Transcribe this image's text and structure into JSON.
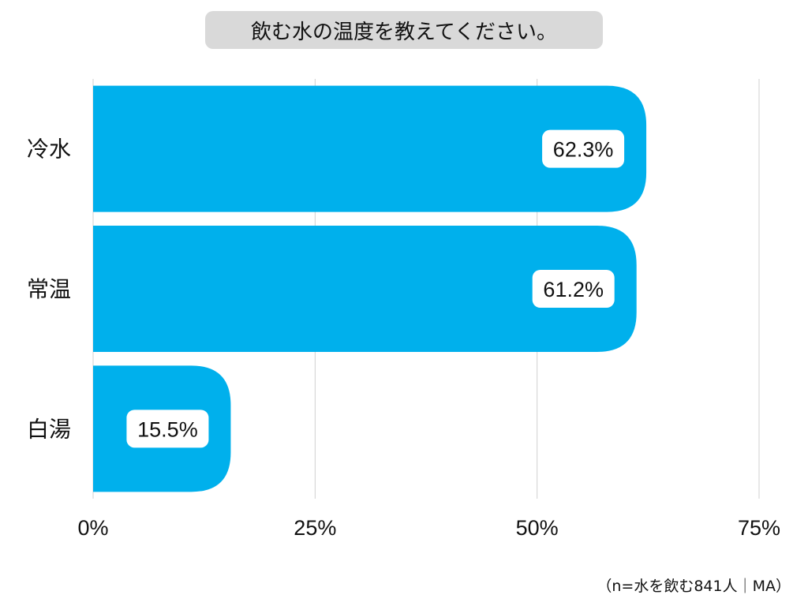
{
  "chart_data": {
    "type": "bar",
    "orientation": "horizontal",
    "title": "飲む水の温度を教えてください。",
    "categories": [
      "冷水",
      "常温",
      "白湯"
    ],
    "values": [
      62.3,
      61.2,
      15.5
    ],
    "value_labels": [
      "62.3%",
      "61.2%",
      "15.5%"
    ],
    "xlim": [
      0,
      75
    ],
    "xticks": [
      0,
      25,
      50,
      75
    ],
    "xtick_labels": [
      "0%",
      "25%",
      "50%",
      "75%"
    ],
    "grid": "vertical",
    "bar_color": "#00b0ec",
    "note": "（n=水を飲む841人｜MA）"
  }
}
